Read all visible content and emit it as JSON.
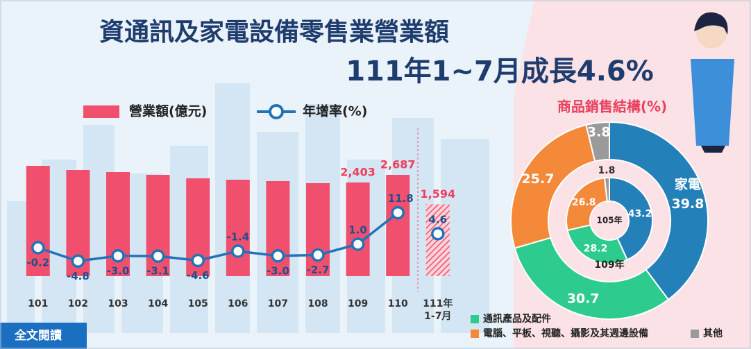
{
  "header": {
    "title": [
      "資通訊及家電設備零售業營業額",
      "111年1~7月成長4.6%"
    ],
    "button": "全文閱讀"
  },
  "chart_data": [
    {
      "type": "bar",
      "categories": [
        "101",
        "102",
        "103",
        "104",
        "105",
        "106",
        "107",
        "108",
        "109",
        "110",
        "111年\n1-7月"
      ],
      "partial_last": true,
      "series": [
        {
          "name": "營業額(億元)",
          "type": "bar",
          "color": "#f0506e",
          "values": [
            3022,
            2868,
            2790,
            2687,
            2558,
            2506,
            2455,
            2377,
            2403,
            2687,
            1594
          ],
          "value_labels": [
            null,
            null,
            null,
            null,
            null,
            null,
            null,
            null,
            "2,403",
            "2,687",
            "1,594"
          ]
        },
        {
          "name": "年增率(%)",
          "type": "line",
          "color": "#2372b8",
          "values": [
            -0.2,
            -4.8,
            -3.0,
            -3.1,
            -4.6,
            -1.4,
            -3.0,
            -2.7,
            1.0,
            11.8,
            4.6
          ],
          "value_labels": [
            "-0.2",
            "-4.8",
            "-3.0",
            "-3.1",
            "-4.6",
            "-1.4",
            "-3.0",
            "-2.7",
            "1.0",
            "11.8",
            "4.6"
          ]
        }
      ]
    },
    {
      "type": "donut",
      "title": "商品銷售結構(%)",
      "categories": [
        "家電",
        "通訊產品及配件",
        "電腦、平板、視聽、攝影及其週邊設備",
        "其他"
      ],
      "colors": [
        "#2380b8",
        "#2ecb8e",
        "#f5893a",
        "#9a9a9a"
      ],
      "series": [
        {
          "name": "109年",
          "values": [
            39.8,
            30.7,
            25.7,
            3.8
          ]
        },
        {
          "name": "105年",
          "values": [
            43.2,
            28.2,
            26.8,
            1.8
          ]
        }
      ]
    }
  ]
}
